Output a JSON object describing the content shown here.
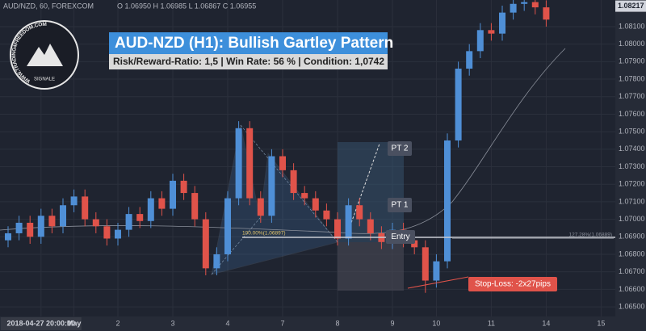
{
  "chart_data": {
    "type": "candlestick",
    "symbol": "AUD/NZD, 60, FOREXCOM",
    "ohlc_header": "O 1.06950  H 1.06985  L 1.06867  C 1.06955",
    "title": "AUD-NZD (H1): Bullish Gartley Pattern",
    "subtitle": "Risk/Reward-Ratio: 1,5 | Win Rate: 56 % | Condition: 1,0742",
    "logo_text": "WWW.TRADING4FREEDOM.COM",
    "logo_subtext": "SIGNALE",
    "annotations": {
      "pt2": "PT 2",
      "pt1": "PT 1",
      "entry": "Entry",
      "stop_loss": "Stop-Loss: -2x27pips"
    },
    "levels": [
      {
        "value": 1.06897,
        "label": "100.00%(1.06897)"
      },
      {
        "value": 1.06889,
        "label": "127.28%(1.06889)"
      }
    ],
    "last_price": {
      "value": 1.08217,
      "label": "1.08217"
    },
    "up_color": "#4f8fd6",
    "down_color": "#e0534a",
    "grid": true,
    "ylim": [
      1.06445,
      1.08252
    ],
    "yticks": [
      {
        "value": 1.065,
        "label": "1.06500"
      },
      {
        "value": 1.066,
        "label": "1.06600"
      },
      {
        "value": 1.067,
        "label": "1.06700"
      },
      {
        "value": 1.068,
        "label": "1.06800"
      },
      {
        "value": 1.069,
        "label": "1.06900"
      },
      {
        "value": 1.07,
        "label": "1.07000"
      },
      {
        "value": 1.071,
        "label": "1.07100"
      },
      {
        "value": 1.072,
        "label": "1.07200"
      },
      {
        "value": 1.073,
        "label": "1.07300"
      },
      {
        "value": 1.074,
        "label": "1.07400"
      },
      {
        "value": 1.075,
        "label": "1.07500"
      },
      {
        "value": 1.076,
        "label": "1.07600"
      },
      {
        "value": 1.077,
        "label": "1.07700"
      },
      {
        "value": 1.078,
        "label": "1.07800"
      },
      {
        "value": 1.079,
        "label": "1.07900"
      },
      {
        "value": 1.08,
        "label": "1.08000"
      },
      {
        "value": 1.081,
        "label": "1.08100"
      }
    ],
    "categories": [
      null,
      null,
      null,
      "2018-04-27 20:00:00",
      null,
      null,
      "May",
      null,
      null,
      null,
      "2",
      null,
      null,
      null,
      null,
      "3",
      null,
      null,
      null,
      null,
      "4",
      null,
      null,
      null,
      null,
      "7",
      null,
      null,
      null,
      null,
      "8",
      null,
      null,
      null,
      null,
      "9",
      null,
      null,
      null,
      "10",
      null,
      null,
      null,
      null,
      "11",
      null,
      null,
      null,
      null,
      "14",
      null,
      null,
      null,
      null,
      "15"
    ],
    "open": [
      1.0688,
      1.0692,
      1.0698,
      1.069,
      1.0702,
      1.0696,
      1.0708,
      1.0713,
      1.07,
      1.0696,
      1.0689,
      1.0694,
      1.0703,
      1.0699,
      1.0712,
      1.0706,
      1.0722,
      1.0715,
      1.07,
      1.0672,
      1.068,
      1.0712,
      1.0752,
      1.0712,
      1.0702,
      1.0736,
      1.0728,
      1.0715,
      1.0712,
      1.0705,
      1.07,
      1.0689,
      1.0708,
      1.07,
      1.0692,
      1.0687,
      1.0694,
      1.0688,
      1.0684,
      1.0665,
      1.0676,
      1.0745,
      1.0786,
      1.0796,
      1.0808,
      1.0806,
      1.0818,
      1.0823,
      1.0824,
      1.0821,
      null,
      null,
      null,
      null,
      null
    ],
    "high": [
      1.0696,
      1.0702,
      1.0702,
      1.0706,
      1.0706,
      1.0712,
      1.0717,
      1.0717,
      1.0704,
      1.07,
      1.0698,
      1.0707,
      1.0707,
      1.0716,
      1.0716,
      1.0726,
      1.0726,
      1.0719,
      1.0704,
      1.0684,
      1.0716,
      1.0756,
      1.0756,
      1.0716,
      1.074,
      1.074,
      1.0732,
      1.0719,
      1.0716,
      1.0709,
      1.0704,
      1.0712,
      1.0712,
      1.0704,
      1.0696,
      1.0698,
      1.0698,
      1.0692,
      1.0688,
      1.068,
      1.0749,
      1.079,
      1.08,
      1.0812,
      1.0812,
      1.0822,
      1.0827,
      1.0828,
      1.0828,
      1.0825,
      null,
      null,
      null,
      null,
      null
    ],
    "low": [
      1.0684,
      1.0688,
      1.0686,
      1.0686,
      1.0692,
      1.0692,
      1.0704,
      1.0696,
      1.0692,
      1.0685,
      1.0685,
      1.069,
      1.0695,
      1.0695,
      1.0702,
      1.0702,
      1.0711,
      1.0696,
      1.0668,
      1.0668,
      1.0676,
      1.0708,
      1.0708,
      1.0698,
      1.0698,
      1.0724,
      1.0711,
      1.0708,
      1.0701,
      1.0696,
      1.0685,
      1.0685,
      1.0696,
      1.0688,
      1.0683,
      1.0683,
      1.0684,
      1.068,
      1.0658,
      1.0661,
      1.0672,
      1.0741,
      1.0782,
      1.0792,
      1.0802,
      1.0802,
      1.0814,
      1.0819,
      1.0817,
      1.081,
      null,
      null,
      null,
      null,
      null
    ],
    "close": [
      1.0692,
      1.0698,
      1.069,
      1.0702,
      1.0696,
      1.0708,
      1.0713,
      1.07,
      1.0696,
      1.0689,
      1.0694,
      1.0703,
      1.0699,
      1.0712,
      1.0706,
      1.0722,
      1.0715,
      1.07,
      1.0672,
      1.068,
      1.0712,
      1.0752,
      1.0712,
      1.0702,
      1.0736,
      1.0728,
      1.0715,
      1.0712,
      1.0705,
      1.07,
      1.0689,
      1.0708,
      1.07,
      1.0692,
      1.0687,
      1.0694,
      1.0688,
      1.0684,
      1.0665,
      1.0676,
      1.0745,
      1.0786,
      1.0796,
      1.0808,
      1.0806,
      1.0818,
      1.0823,
      1.0824,
      1.0821,
      1.0814,
      null,
      null,
      null,
      null,
      null
    ]
  }
}
